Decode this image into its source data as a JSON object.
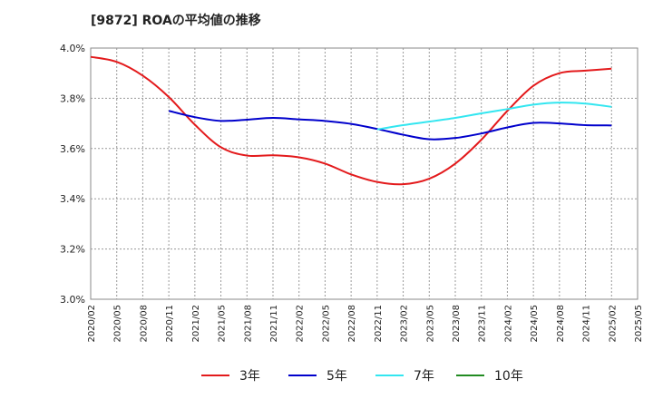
{
  "chart_data": {
    "type": "line",
    "title": "[9872]  ROAの平均値の推移",
    "xlabel": "",
    "ylabel": "",
    "ylim": [
      3.0,
      4.0
    ],
    "y_ticks": [
      "4.0%",
      "3.8%",
      "3.6%",
      "3.4%",
      "3.2%",
      "3.0%"
    ],
    "x_ticks": [
      "2020/02",
      "2020/05",
      "2020/08",
      "2020/11",
      "2021/02",
      "2021/05",
      "2021/08",
      "2021/11",
      "2022/02",
      "2022/05",
      "2022/08",
      "2022/11",
      "2023/02",
      "2023/05",
      "2023/08",
      "2023/11",
      "2024/02",
      "2024/05",
      "2024/08",
      "2024/11",
      "2025/02",
      "2025/05"
    ],
    "grid": true,
    "legend_position": "bottom",
    "series": [
      {
        "name": "3年",
        "color": "#e31a1c",
        "points": [
          [
            "2020/02",
            3.965
          ],
          [
            "2020/05",
            3.945
          ],
          [
            "2020/08",
            3.89
          ],
          [
            "2020/11",
            3.805
          ],
          [
            "2021/02",
            3.695
          ],
          [
            "2021/05",
            3.605
          ],
          [
            "2021/08",
            3.572
          ],
          [
            "2021/11",
            3.573
          ],
          [
            "2022/02",
            3.565
          ],
          [
            "2022/05",
            3.54
          ],
          [
            "2022/08",
            3.497
          ],
          [
            "2022/11",
            3.467
          ],
          [
            "2023/02",
            3.458
          ],
          [
            "2023/05",
            3.48
          ],
          [
            "2023/08",
            3.54
          ],
          [
            "2023/11",
            3.635
          ],
          [
            "2024/02",
            3.75
          ],
          [
            "2024/05",
            3.85
          ],
          [
            "2024/08",
            3.9
          ],
          [
            "2024/11",
            3.91
          ],
          [
            "2025/02",
            3.918
          ]
        ]
      },
      {
        "name": "5年",
        "color": "#0000cc",
        "points": [
          [
            "2020/11",
            3.75
          ],
          [
            "2021/02",
            3.725
          ],
          [
            "2021/05",
            3.71
          ],
          [
            "2021/08",
            3.715
          ],
          [
            "2021/11",
            3.722
          ],
          [
            "2022/02",
            3.716
          ],
          [
            "2022/05",
            3.71
          ],
          [
            "2022/08",
            3.698
          ],
          [
            "2022/11",
            3.678
          ],
          [
            "2023/02",
            3.655
          ],
          [
            "2023/05",
            3.637
          ],
          [
            "2023/08",
            3.642
          ],
          [
            "2023/11",
            3.66
          ],
          [
            "2024/02",
            3.684
          ],
          [
            "2024/05",
            3.702
          ],
          [
            "2024/08",
            3.7
          ],
          [
            "2024/11",
            3.693
          ],
          [
            "2025/02",
            3.692
          ]
        ]
      },
      {
        "name": "7年",
        "color": "#33e6f0",
        "points": [
          [
            "2022/11",
            3.676
          ],
          [
            "2023/02",
            3.693
          ],
          [
            "2023/05",
            3.707
          ],
          [
            "2023/08",
            3.722
          ],
          [
            "2023/11",
            3.74
          ],
          [
            "2024/02",
            3.757
          ],
          [
            "2024/05",
            3.775
          ],
          [
            "2024/08",
            3.783
          ],
          [
            "2024/11",
            3.779
          ],
          [
            "2025/02",
            3.766
          ]
        ]
      },
      {
        "name": "10年",
        "color": "#228b22",
        "points": []
      }
    ]
  }
}
